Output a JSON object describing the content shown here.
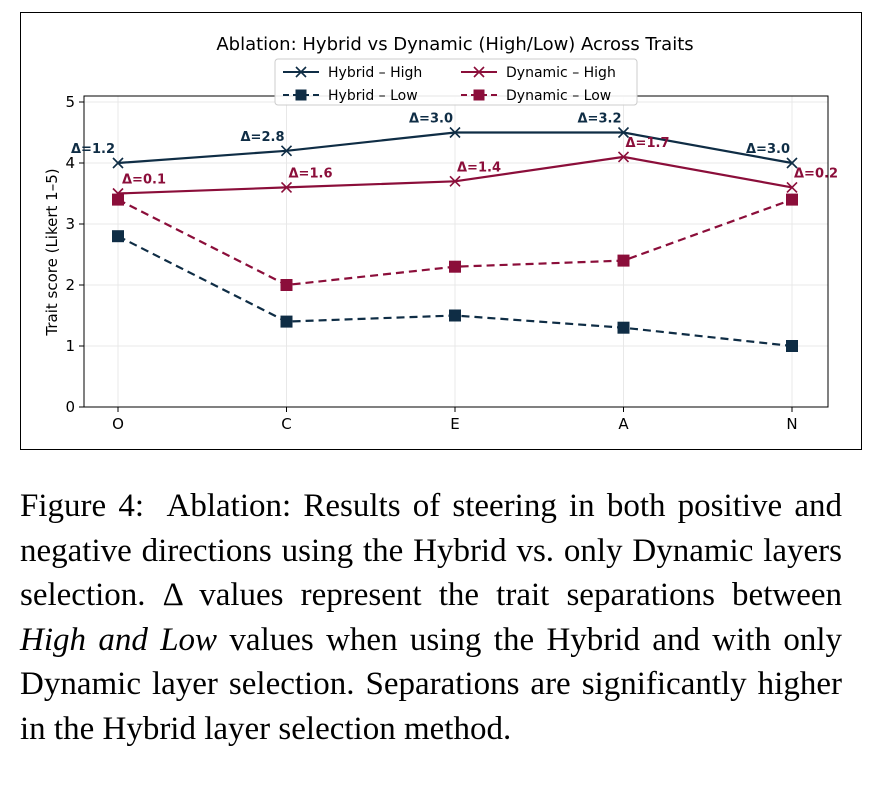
{
  "chart_data": {
    "type": "line",
    "title": "Ablation: Hybrid vs Dynamic (High/Low) Across Traits",
    "xlabel": "",
    "ylabel": "Trait score (Likert 1–5)",
    "categories": [
      "O",
      "C",
      "E",
      "A",
      "N"
    ],
    "ylim": [
      0,
      5.1
    ],
    "yticks": [
      0,
      1,
      2,
      3,
      4,
      5
    ],
    "grid": true,
    "legend_position": "top-center",
    "series": [
      {
        "name": "Hybrid – High",
        "values": [
          4.0,
          4.2,
          4.5,
          4.5,
          4.0
        ],
        "color": "#0f2d45",
        "marker": "x",
        "linestyle": "solid"
      },
      {
        "name": "Hybrid – Low",
        "values": [
          2.8,
          1.4,
          1.5,
          1.3,
          1.0
        ],
        "color": "#0f2d45",
        "marker": "square",
        "linestyle": "dashed"
      },
      {
        "name": "Dynamic – High",
        "values": [
          3.5,
          3.6,
          3.7,
          4.1,
          3.6
        ],
        "color": "#8b0e3a",
        "marker": "x",
        "linestyle": "solid"
      },
      {
        "name": "Dynamic – Low",
        "values": [
          3.4,
          2.0,
          2.3,
          2.4,
          3.4
        ],
        "color": "#8b0e3a",
        "marker": "square",
        "linestyle": "dashed"
      }
    ],
    "annotations": {
      "hybrid_deltas": [
        "Δ=1.2",
        "Δ=2.8",
        "Δ=3.0",
        "Δ=3.2",
        "Δ=3.0"
      ],
      "dynamic_deltas": [
        "Δ=0.1",
        "Δ=1.6",
        "Δ=1.4",
        "Δ=1.7",
        "Δ=0.2"
      ]
    }
  },
  "caption": {
    "label": "Figure 4:",
    "text_before": "Ablation: Results of steering in both positive and negative directions using the Hybrid vs. only Dynamic layers selection. Δ values represent the trait separations between ",
    "emphasis": "High and Low",
    "text_after": " values when using the Hybrid and with only Dynamic layer selection. Separations are significantly higher in the Hybrid layer selection method."
  }
}
